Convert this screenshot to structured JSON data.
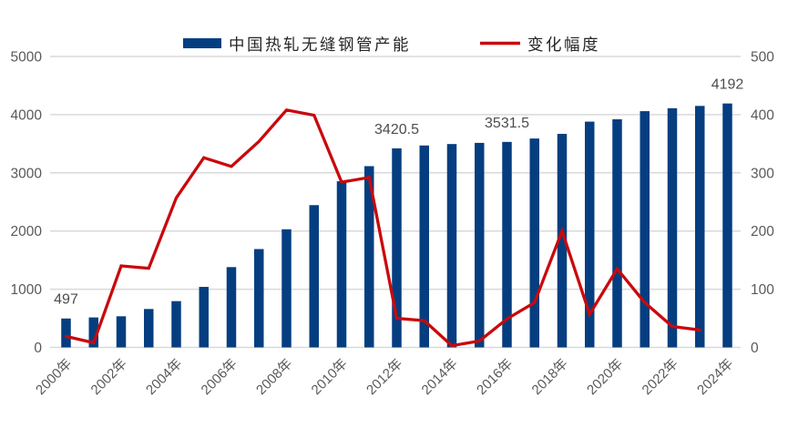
{
  "chart_data": {
    "type": "combo_bar_line",
    "title": "",
    "categories": [
      "2000年",
      "2001年",
      "2002年",
      "2003年",
      "2004年",
      "2005年",
      "2006年",
      "2007年",
      "2008年",
      "2009年",
      "2010年",
      "2011年",
      "2012年",
      "2013年",
      "2014年",
      "2015年",
      "2016年",
      "2017年",
      "2018年",
      "2019年",
      "2020年",
      "2021年",
      "2022年",
      "2023年",
      "2024年"
    ],
    "x_tick_step": 2,
    "series": [
      {
        "name": "中国热轧无缝钢管产能",
        "type": "bar",
        "axis": "left",
        "color": "#053E80",
        "values": [
          497,
          515,
          535,
          660,
          795,
          1040,
          1380,
          1690,
          2030,
          2445,
          2855,
          3115,
          3420.5,
          3470,
          3495,
          3515,
          3531.5,
          3590,
          3670,
          3880,
          3920,
          4060,
          4110,
          4150,
          4192
        ]
      },
      {
        "name": "变化幅度",
        "type": "line",
        "axis": "right",
        "color": "#C9090C",
        "values": [
          19,
          8,
          140,
          136,
          257,
          326,
          311,
          354,
          408,
          399,
          284,
          292,
          50,
          46,
          3,
          11,
          49,
          77,
          200,
          57,
          135,
          77,
          36,
          30,
          null
        ]
      }
    ],
    "left_axis": {
      "min": 0,
      "max": 5000,
      "step": 1000,
      "ticks": [
        "0",
        "1000",
        "2000",
        "3000",
        "4000",
        "5000"
      ]
    },
    "right_axis": {
      "min": 0,
      "max": 500,
      "step": 100,
      "ticks": [
        "0",
        "100",
        "200",
        "300",
        "400",
        "500"
      ]
    },
    "bar_labels": [
      {
        "category": "2000年",
        "text": "497"
      },
      {
        "category": "2012年",
        "text": "3420.5"
      },
      {
        "category": "2016年",
        "text": "3531.5"
      },
      {
        "category": "2024年",
        "text": "4192"
      }
    ],
    "grid": true,
    "legend_position": "top",
    "colors": {
      "grid": "#D9D9D9",
      "axis_text": "#595959",
      "data_label": "#4D4D4D",
      "legend_text": "#262626",
      "background": "#FFFFFF"
    }
  }
}
